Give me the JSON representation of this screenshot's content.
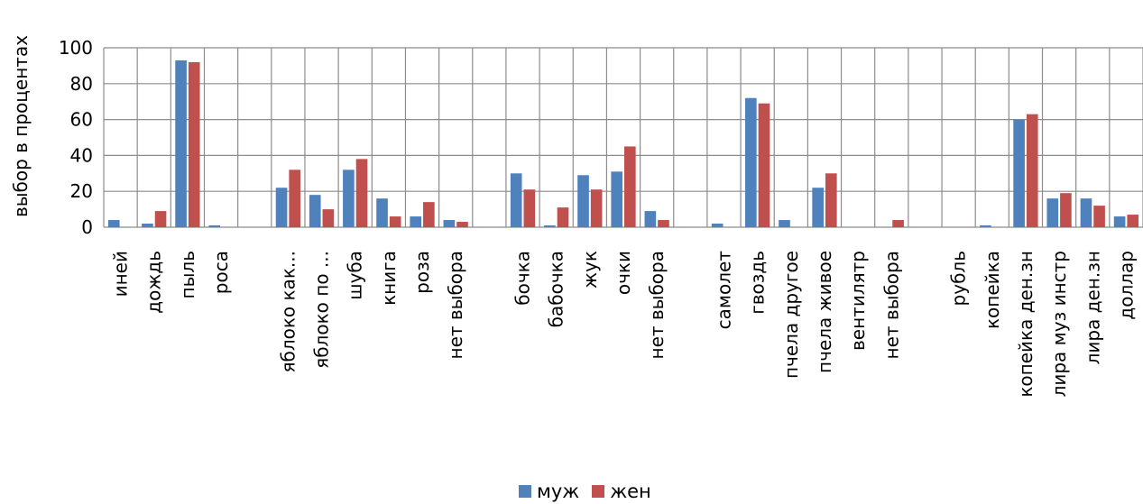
{
  "chart_data": {
    "type": "bar",
    "ylabel": "выбор в процентах",
    "xlabel": "",
    "ylim": [
      0,
      100
    ],
    "yticks": [
      0,
      20,
      40,
      60,
      80,
      100
    ],
    "grid": true,
    "legend_position": "bottom",
    "categories": [
      "иней",
      "дождь",
      "пыль",
      "роса",
      "",
      "яблоко как...",
      "яблоко по ...",
      "шуба",
      "книга",
      "роза",
      "нет выбора",
      "",
      "бочка",
      "бабочка",
      "жук",
      "очки",
      "нет выбора",
      "",
      "самолет",
      "гвоздь",
      "пчела другое",
      "пчела живое",
      "вентилятр",
      "нет выбора",
      "",
      "рубль",
      "копейка",
      "копейка ден.зн",
      "лира муз инстр",
      "лира ден.зн",
      "доллар"
    ],
    "series": [
      {
        "name": "муж",
        "color": "#4F81BD",
        "values": [
          4,
          2,
          93,
          1,
          0,
          22,
          18,
          32,
          16,
          6,
          4,
          0,
          30,
          1,
          29,
          31,
          9,
          0,
          2,
          72,
          4,
          22,
          0,
          0,
          0,
          0,
          1,
          60,
          16,
          16,
          6
        ]
      },
      {
        "name": "жен",
        "color": "#C0504D",
        "values": [
          0,
          9,
          92,
          0,
          0,
          32,
          10,
          38,
          6,
          14,
          3,
          0,
          21,
          11,
          21,
          45,
          4,
          0,
          0,
          69,
          0,
          30,
          0,
          4,
          0,
          0,
          0,
          63,
          19,
          12,
          7
        ]
      }
    ]
  }
}
